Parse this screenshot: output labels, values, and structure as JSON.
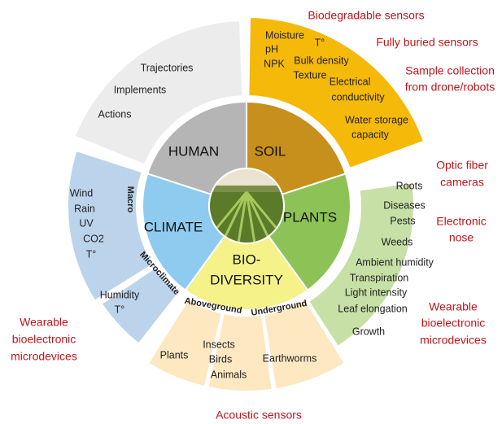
{
  "sectors": [
    {
      "label": [
        "HUMAN"
      ]
    },
    {
      "label": [
        "SOIL"
      ]
    },
    {
      "label": [
        "PLANTS"
      ]
    },
    {
      "label": [
        "BIO-",
        "DIVERSITY"
      ]
    },
    {
      "label": [
        "CLIMATE"
      ]
    }
  ],
  "human_items": [
    "Trajectories",
    "Implements",
    "Actions"
  ],
  "soil_items": [
    "Moisture",
    "T°",
    "pH",
    "Bulk density",
    "NPK",
    "Texture",
    "Electrical",
    "conductivity",
    "Water  storage",
    "capacity"
  ],
  "plants_items": [
    "Roots",
    "Diseases",
    "Pests",
    "Weeds",
    "Ambient humidity",
    "Transpiration",
    "Light intensity",
    "Leaf elongation",
    "Growth"
  ],
  "climate": {
    "macro_label": "Macro",
    "macro_items": [
      "Wind",
      "Rain",
      "UV",
      "CO2",
      "T°"
    ],
    "micro_label": "Microclimate",
    "micro_items": [
      "Humidity",
      "T°"
    ]
  },
  "biodiversity": {
    "above_label": "Aboveground",
    "under_label": "Underground",
    "plants": [
      "Plants"
    ],
    "insects": [
      "Insects",
      "Birds",
      "Animals"
    ],
    "underground": [
      "Earthworms"
    ]
  },
  "annotations": [
    {
      "lines": [
        "Biodegradable sensors"
      ]
    },
    {
      "lines": [
        "Fully buried sensors"
      ]
    },
    {
      "lines": [
        "Sample collection",
        "from drone/robots"
      ]
    },
    {
      "lines": [
        "Optic fiber",
        "cameras"
      ]
    },
    {
      "lines": [
        "Electronic",
        "nose"
      ]
    },
    {
      "lines": [
        "Wearable",
        "bioelectronic",
        "microdevices"
      ]
    },
    {
      "lines": [
        "Wearable",
        "bioelectronic",
        "microdevices"
      ]
    },
    {
      "lines": [
        "Acoustic sensors"
      ]
    }
  ]
}
